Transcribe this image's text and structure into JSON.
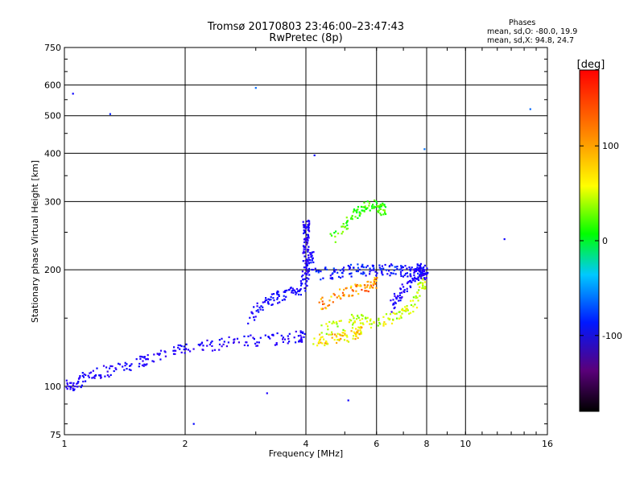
{
  "header": {
    "title_line1": "Tromsø 20170803 23:46:00–23:47:43",
    "title_line2": "RwPretec (8p)"
  },
  "stats": {
    "heading": "Phases",
    "o_mode": "mean, sd,O: -80.0, 19.9",
    "x_mode": "mean, sd,X:  94.8, 24.7"
  },
  "colorbar": {
    "unit_label": "[deg]",
    "range": [
      -180,
      180
    ],
    "tick_values": [
      100,
      0,
      -100
    ],
    "tick_labels": [
      "100",
      "0",
      "-100"
    ],
    "colormap": "rainbow (black-purple-blue-cyan-green-yellow-orange-red)"
  },
  "chart_data": {
    "type": "scatter",
    "title": "Tromsø 20170803 23:46:00–23:47:43",
    "subtitle": "RwPretec (8p)",
    "xlabel": "Frequency [MHz]",
    "ylabel": "Stationary phase Virtual Height [km]",
    "xscale": "log",
    "yscale": "log",
    "xlim": [
      1,
      16
    ],
    "ylim": [
      75,
      750
    ],
    "x_ticks": [
      1,
      2,
      4,
      6,
      8,
      10,
      16
    ],
    "x_tick_labels": [
      "1",
      "2",
      "4",
      "6",
      "8",
      "10",
      "16"
    ],
    "y_ticks": [
      75,
      100,
      200,
      300,
      400,
      500,
      600,
      750
    ],
    "y_tick_labels": [
      "75",
      "100",
      "200",
      "300",
      "400",
      "500",
      "600",
      "750"
    ],
    "grid": true,
    "color_encodes": "phase [deg]",
    "point_groups": [
      {
        "trace": "low-frequency trace",
        "freq_MHz": [
          1.0,
          1.05,
          1.1,
          1.2,
          1.3,
          1.45,
          1.6,
          1.8,
          2.0,
          2.3,
          2.6,
          3.0,
          3.5,
          3.9
        ],
        "height_km": [
          100,
          101,
          104,
          108,
          110,
          112,
          117,
          122,
          125,
          127,
          130,
          131,
          133,
          135
        ],
        "phase_deg": -110
      },
      {
        "trace": "mid trace rising",
        "freq_MHz": [
          2.9,
          3.1,
          3.3,
          3.5,
          3.7,
          3.9,
          4.0,
          4.1
        ],
        "height_km": [
          150,
          160,
          168,
          172,
          175,
          180,
          190,
          215
        ],
        "phase_deg": -100
      },
      {
        "trace": "vertical cusp",
        "freq_MHz": [
          4.0,
          4.0,
          4.0,
          4.0,
          4.0
        ],
        "height_km": [
          200,
          220,
          235,
          250,
          260
        ],
        "phase_deg": -115
      },
      {
        "trace": "upper trace",
        "freq_MHz": [
          4.2,
          4.6,
          5.0,
          5.4,
          5.8,
          6.2,
          6.6,
          7.0,
          7.4,
          7.8
        ],
        "height_km": [
          195,
          196,
          198,
          200,
          200,
          200,
          200,
          198,
          200,
          200
        ],
        "phase_deg": -90
      },
      {
        "trace": "high branch",
        "freq_MHz": [
          4.6,
          5.0,
          5.3,
          5.6,
          5.9,
          6.2
        ],
        "height_km": [
          240,
          260,
          280,
          290,
          300,
          285
        ],
        "phase_deg": 60
      },
      {
        "trace": "X-mode cluster",
        "freq_MHz": [
          4.4,
          5.0,
          5.5,
          6.0,
          6.5,
          7.0,
          7.4,
          7.8
        ],
        "height_km": [
          140,
          145,
          150,
          145,
          150,
          155,
          160,
          185
        ],
        "phase_deg": 100
      },
      {
        "trace": "X-mode lower",
        "freq_MHz": [
          4.2,
          4.5,
          4.8,
          5.1,
          5.4
        ],
        "height_km": [
          132,
          132,
          134,
          135,
          138
        ],
        "phase_deg": 120
      },
      {
        "trace": "X-mode mid",
        "freq_MHz": [
          4.3,
          4.7,
          5.1,
          5.5,
          5.9
        ],
        "height_km": [
          160,
          170,
          175,
          180,
          185
        ],
        "phase_deg": 140
      },
      {
        "trace": "near-8 vertical",
        "freq_MHz": [
          6.5,
          6.8,
          7.1,
          7.4,
          7.7,
          7.9
        ],
        "height_km": [
          160,
          170,
          180,
          190,
          200,
          195
        ],
        "phase_deg": -110
      },
      {
        "trace": "scattered outliers",
        "freq_MHz": [
          1.3,
          3.0,
          4.2,
          7.9,
          12.5,
          14.5,
          1.05,
          2.1,
          5.1,
          3.2
        ],
        "height_km": [
          505,
          590,
          395,
          410,
          240,
          520,
          570,
          80,
          92,
          96
        ],
        "phase_deg": -80
      }
    ]
  }
}
